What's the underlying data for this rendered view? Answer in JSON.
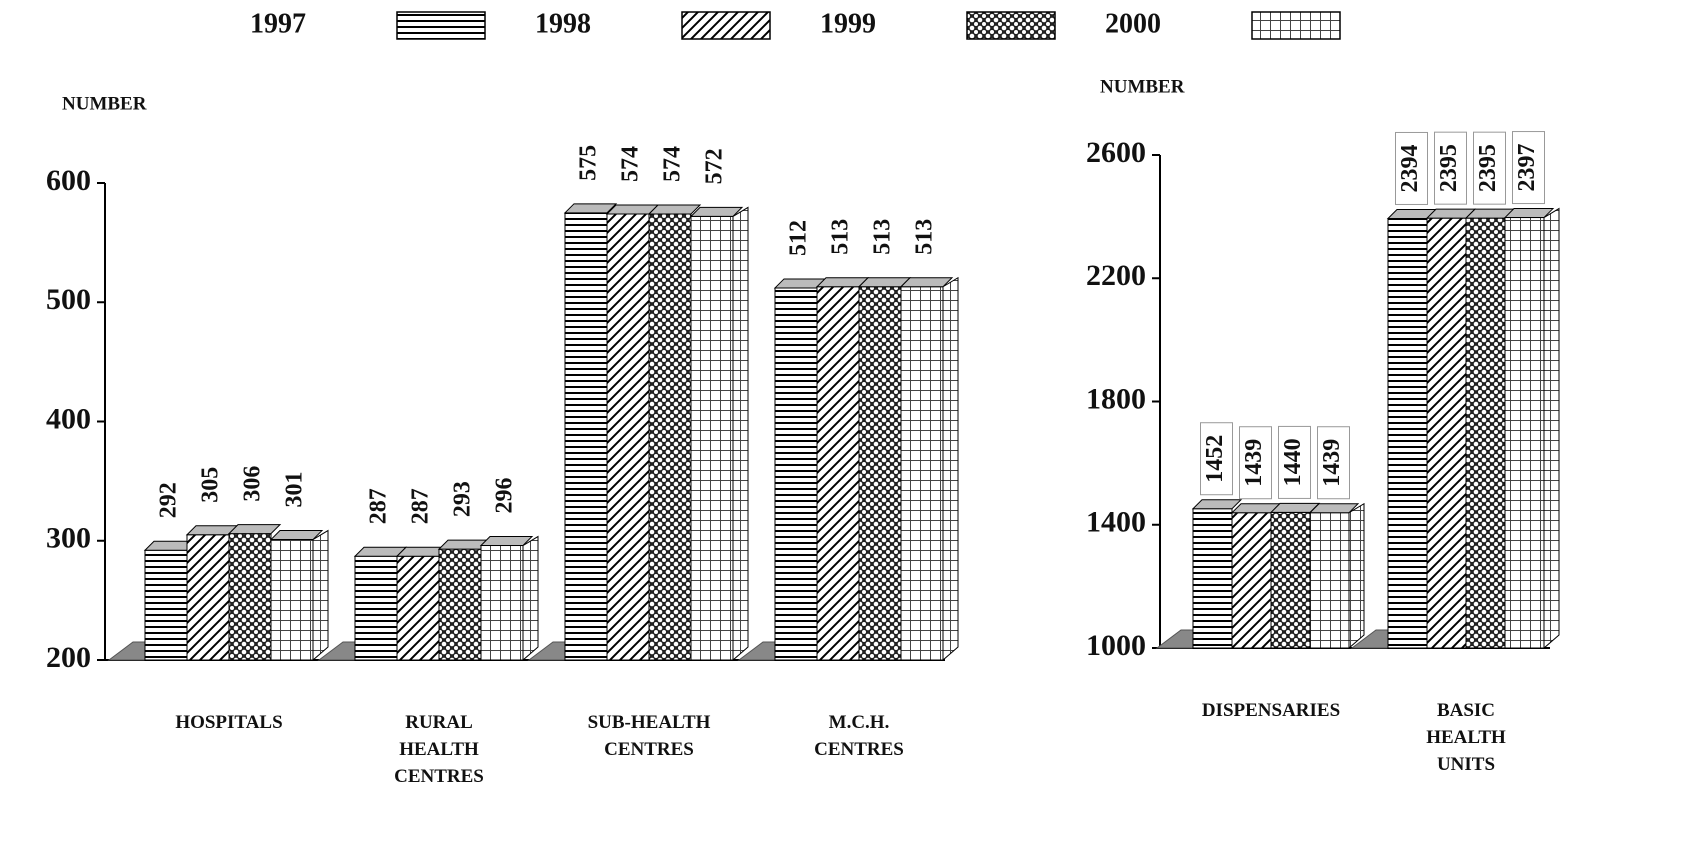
{
  "chart_data": [
    {
      "type": "bar",
      "y_label": "NUMBER",
      "categories": [
        "HOSPITALS",
        "RURAL HEALTH CENTRES",
        "SUB-HEALTH CENTRES",
        "M.C.H. CENTRES"
      ],
      "series": [
        {
          "name": "1997",
          "pattern": "horizontal",
          "values": [
            292,
            287,
            575,
            512
          ]
        },
        {
          "name": "1998",
          "pattern": "diagonal",
          "values": [
            305,
            287,
            574,
            513
          ]
        },
        {
          "name": "1999",
          "pattern": "dots",
          "values": [
            306,
            293,
            574,
            513
          ]
        },
        {
          "name": "2000",
          "pattern": "grid",
          "values": [
            301,
            296,
            572,
            513
          ]
        }
      ],
      "ylim": [
        200,
        600
      ],
      "yticks": [
        200,
        300,
        400,
        500,
        600
      ]
    },
    {
      "type": "bar",
      "y_label": "NUMBER",
      "categories": [
        "DISPENSARIES",
        "BASIC HEALTH UNITS"
      ],
      "series": [
        {
          "pattern": "horizontal",
          "values": [
            1452,
            2394
          ]
        },
        {
          "pattern": "diagonal",
          "values": [
            1439,
            2395
          ]
        },
        {
          "pattern": "dots",
          "values": [
            1440,
            2395
          ]
        },
        {
          "pattern": "grid",
          "values": [
            1439,
            2397
          ]
        }
      ],
      "ylim": [
        1000,
        2600
      ],
      "yticks": [
        1000,
        1400,
        1800,
        2200,
        2600
      ]
    }
  ]
}
